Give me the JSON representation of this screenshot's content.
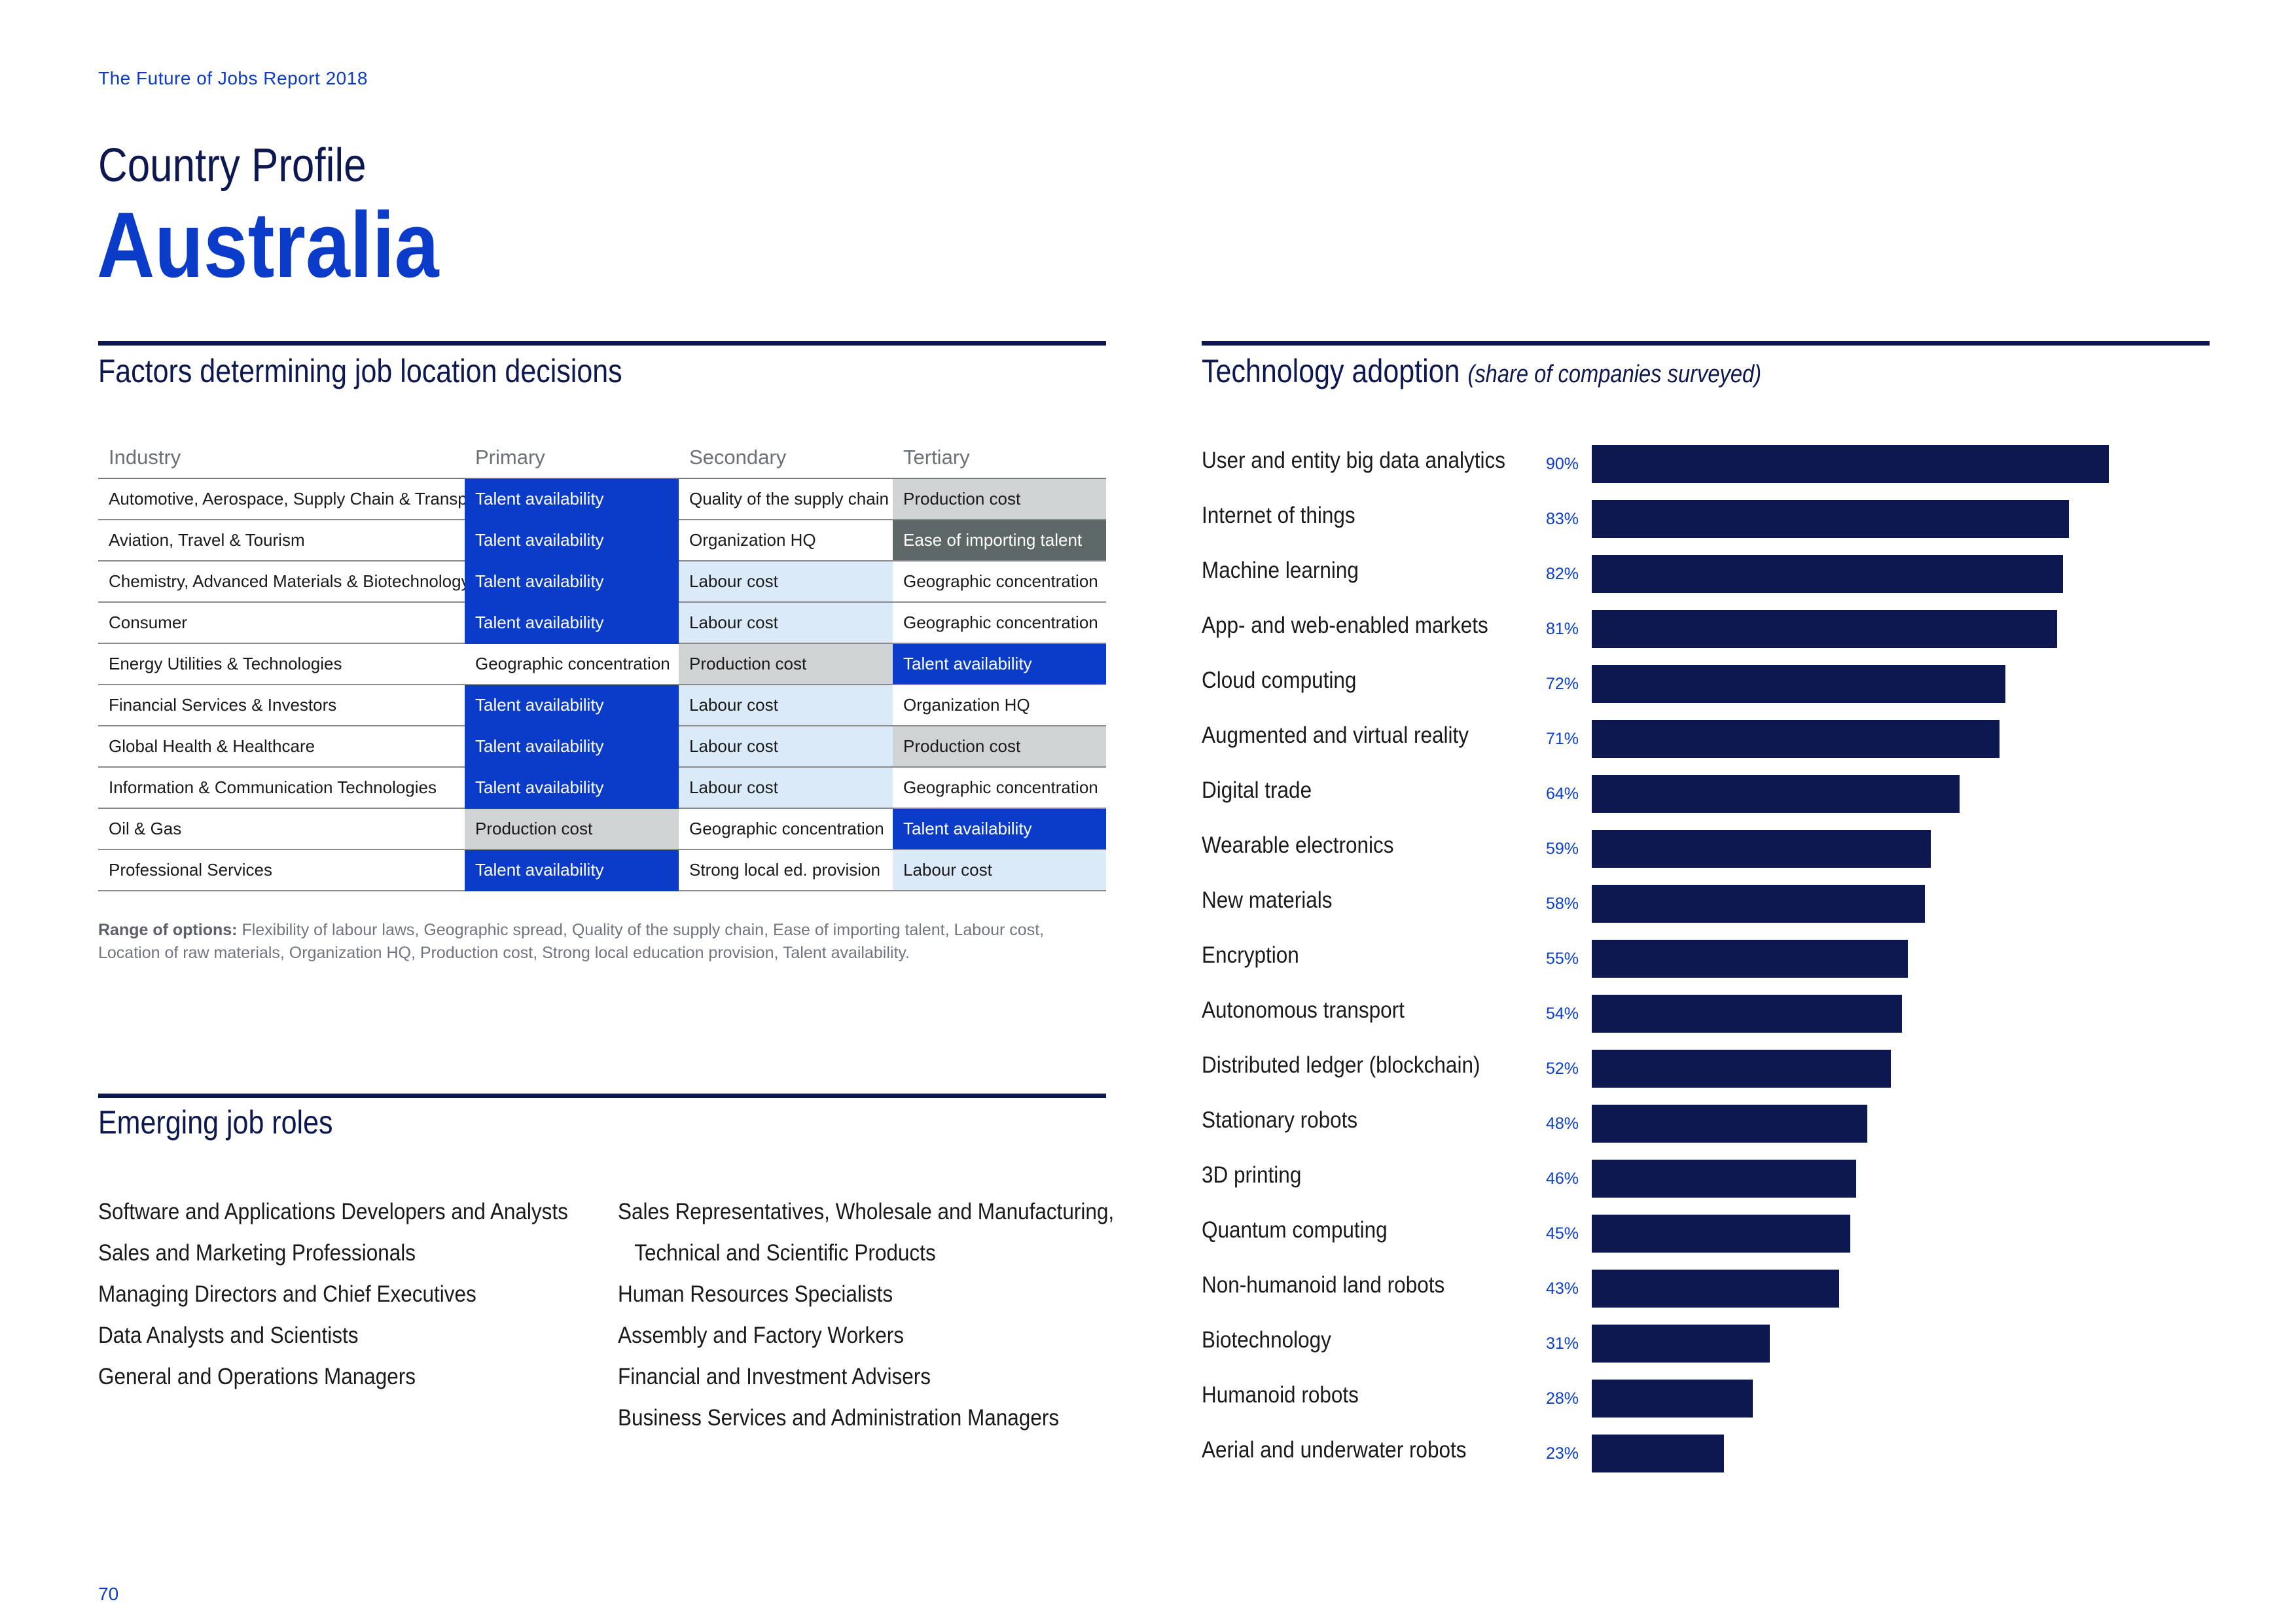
{
  "header": {
    "report_title": "The Future of Jobs Report 2018",
    "subtitle": "Country Profile",
    "country": "Australia"
  },
  "factors": {
    "title": "Factors determining job location decisions",
    "columns": [
      "Industry",
      "Primary",
      "Secondary",
      "Tertiary"
    ],
    "rows": [
      {
        "industry": "Automotive, Aerospace, Supply Chain & Transport",
        "primary": "Talent availability",
        "secondary": "Quality of the supply chain",
        "tertiary": "Production cost"
      },
      {
        "industry": "Aviation, Travel & Tourism",
        "primary": "Talent availability",
        "secondary": "Organization HQ",
        "tertiary": "Ease of importing talent"
      },
      {
        "industry": "Chemistry, Advanced Materials & Biotechnology",
        "primary": "Talent availability",
        "secondary": "Labour cost",
        "tertiary": "Geographic concentration"
      },
      {
        "industry": "Consumer",
        "primary": "Talent availability",
        "secondary": "Labour cost",
        "tertiary": "Geographic concentration"
      },
      {
        "industry": "Energy Utilities & Technologies",
        "primary": "Geographic concentration",
        "secondary": "Production cost",
        "tertiary": "Talent availability"
      },
      {
        "industry": "Financial Services & Investors",
        "primary": "Talent availability",
        "secondary": "Labour cost",
        "tertiary": "Organization HQ"
      },
      {
        "industry": "Global Health & Healthcare",
        "primary": "Talent availability",
        "secondary": "Labour cost",
        "tertiary": "Production cost"
      },
      {
        "industry": "Information & Communication Technologies",
        "primary": "Talent availability",
        "secondary": "Labour cost",
        "tertiary": "Geographic concentration"
      },
      {
        "industry": "Oil & Gas",
        "primary": "Production cost",
        "secondary": "Geographic concentration",
        "tertiary": "Talent availability"
      },
      {
        "industry": "Professional Services",
        "primary": "Talent availability",
        "secondary": "Strong local ed. provision",
        "tertiary": "Labour cost"
      }
    ],
    "range_label": "Range of options:",
    "range_text": "Flexibility of labour laws, Geographic spread, Quality of the supply chain, Ease of importing talent, Labour cost, Location of raw materials, Organization HQ, Production cost, Strong local education provision, Talent availability."
  },
  "jobs": {
    "title": "Emerging job roles",
    "left": [
      "Software and Applications Developers and Analysts",
      "Sales and Marketing Professionals",
      "Managing Directors and Chief Executives",
      "Data Analysts and Scientists",
      "General and Operations Managers"
    ],
    "right": [
      "Sales Representatives, Wholesale and Manufacturing,",
      "Technical and Scientific Products",
      "Human Resources Specialists",
      "Assembly and Factory Workers",
      "Financial and Investment Advisers",
      "Business Services and Administration Managers"
    ]
  },
  "technology": {
    "title": "Technology adoption",
    "subtitle": "(share of companies surveyed)"
  },
  "chart_data": {
    "type": "bar",
    "orientation": "horizontal",
    "title": "Technology adoption (share of companies surveyed)",
    "unit": "%",
    "xlim": [
      0,
      100
    ],
    "bar_color": "#0d1850",
    "label_color": "#0a3cc9",
    "categories": [
      "User and entity big data analytics",
      "Internet of things",
      "Machine learning",
      "App- and web-enabled markets",
      "Cloud computing",
      "Augmented and virtual reality",
      "Digital trade",
      "Wearable electronics",
      "New materials",
      "Encryption",
      "Autonomous transport",
      "Distributed ledger (blockchain)",
      "Stationary robots",
      "3D printing",
      "Quantum computing",
      "Non-humanoid land robots",
      "Biotechnology",
      "Humanoid robots",
      "Aerial and underwater robots"
    ],
    "values": [
      90,
      83,
      82,
      81,
      72,
      71,
      64,
      59,
      58,
      55,
      54,
      52,
      48,
      46,
      45,
      43,
      31,
      28,
      23
    ],
    "value_labels": [
      "90%",
      "83%",
      "82%",
      "81%",
      "72%",
      "71%",
      "64%",
      "59%",
      "58%",
      "55%",
      "54%",
      "52%",
      "48%",
      "46%",
      "45%",
      "43%",
      "31%",
      "28%",
      "23%"
    ]
  },
  "footer": {
    "page_number": "70"
  },
  "colors": {
    "accent": "#0a3cc9",
    "navy": "#0d1850",
    "cell_gray": "#cfd3d3",
    "cell_light": "#daeaf8",
    "cell_dark": "#5d6767"
  }
}
